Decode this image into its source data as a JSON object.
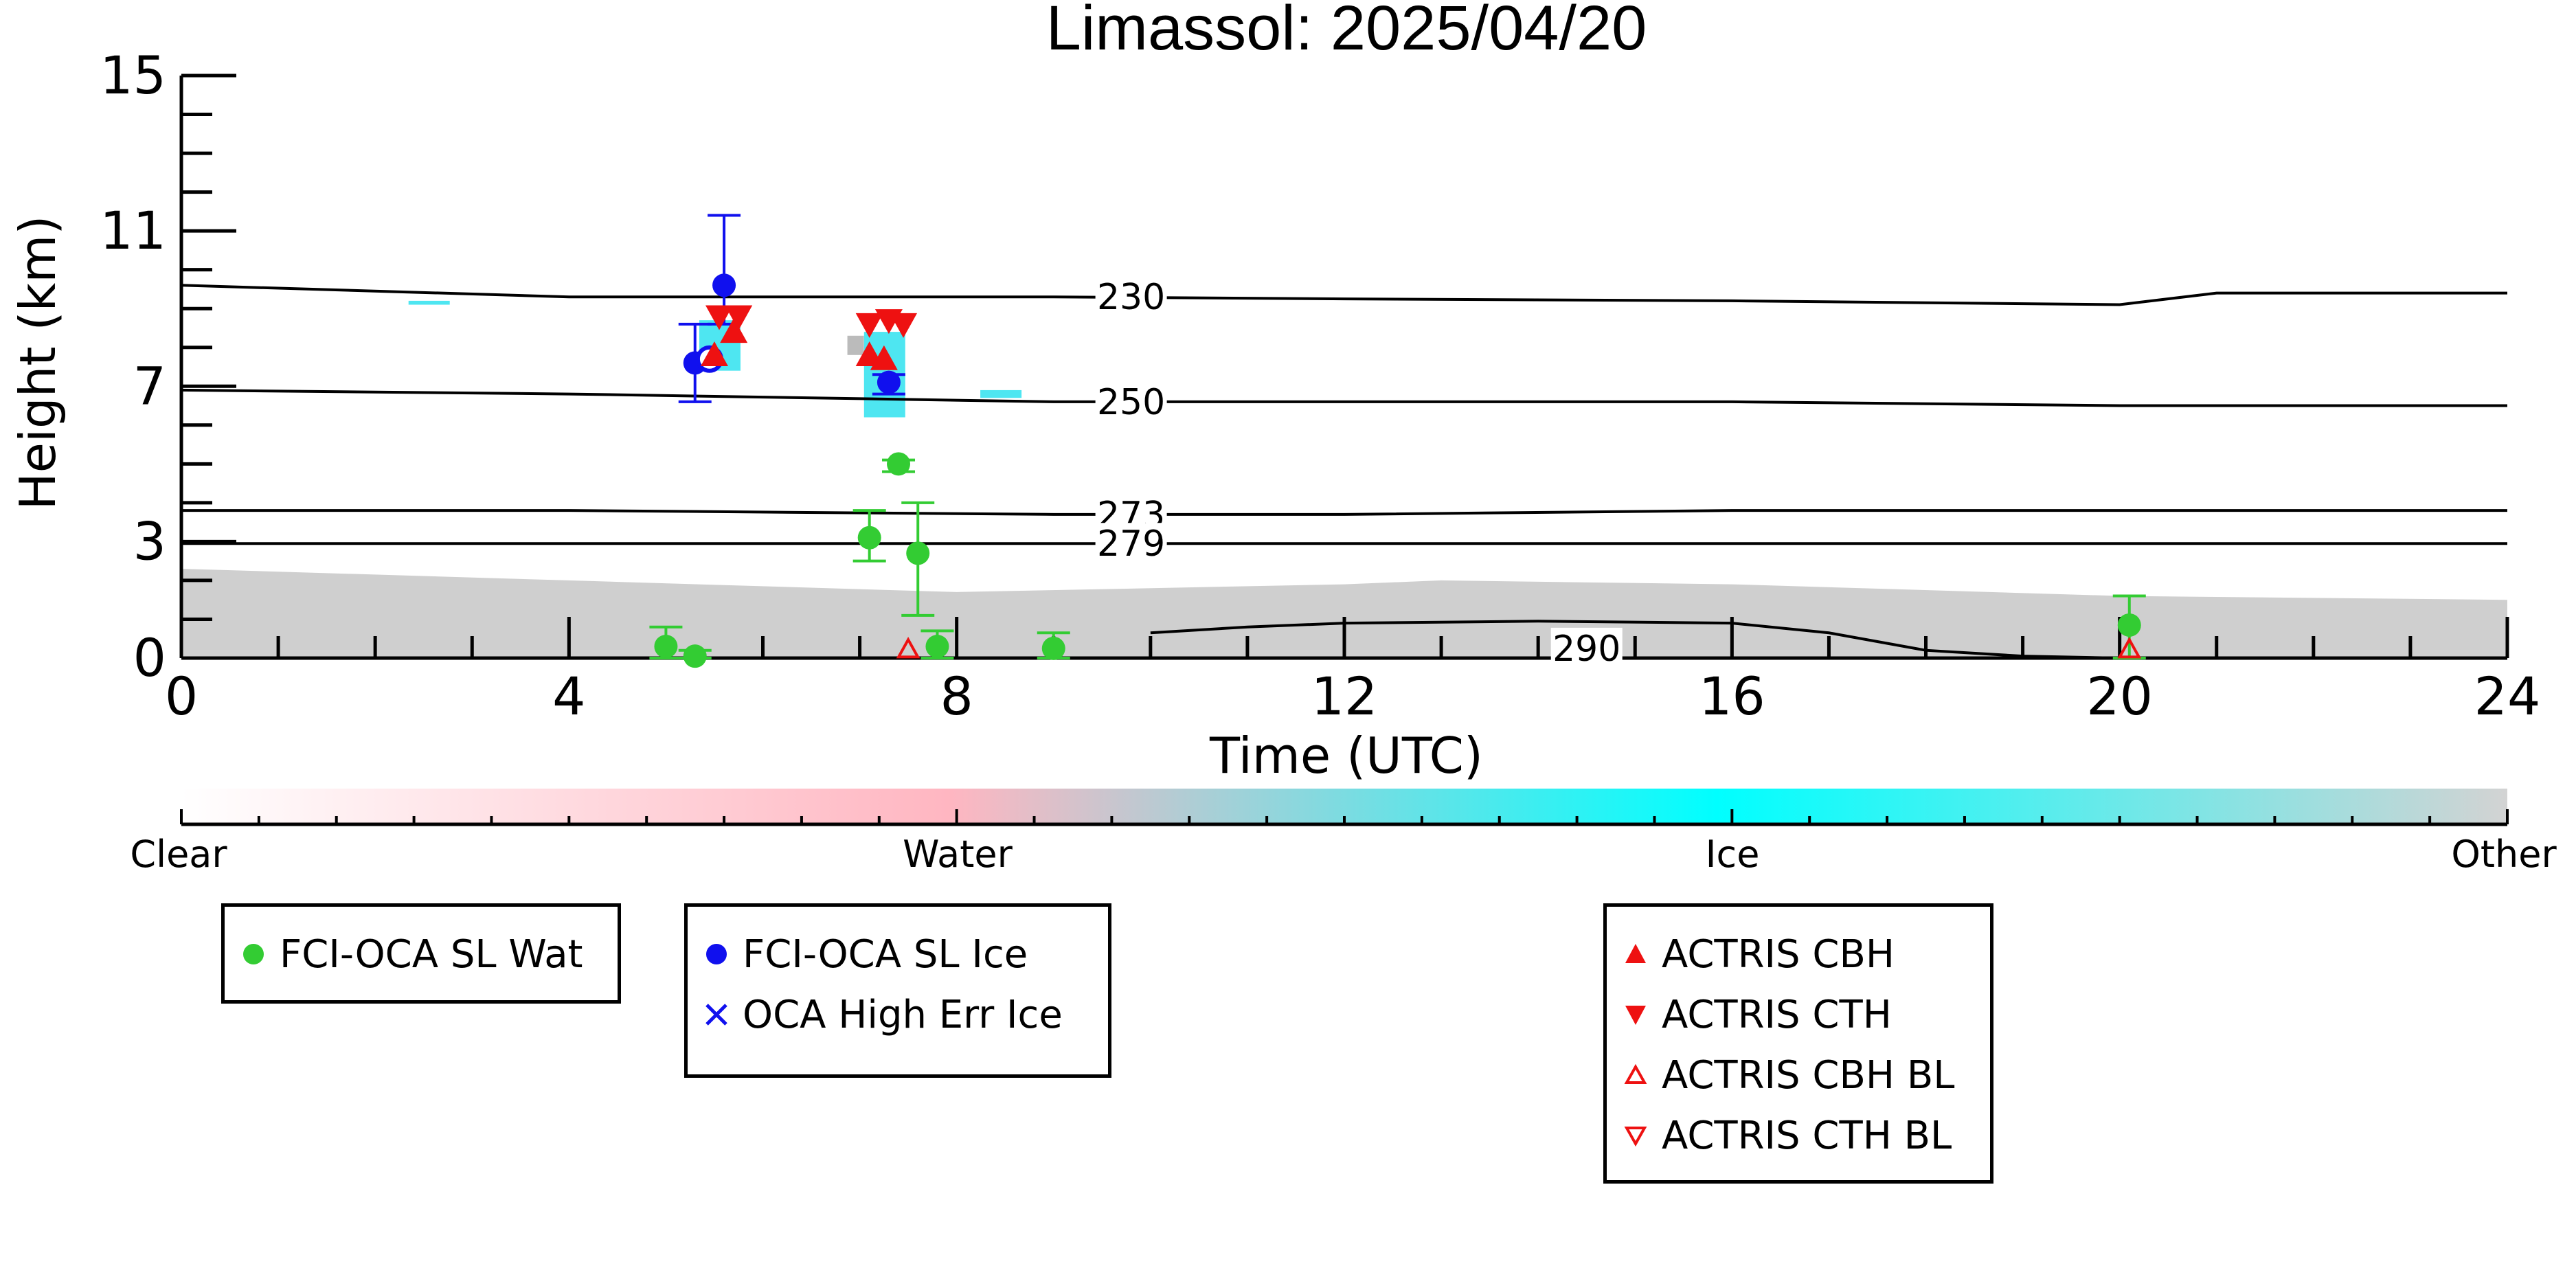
{
  "chart_data": {
    "type": "scatter",
    "title": "Limassol: 2025/04/20",
    "xlabel": "Time (UTC)",
    "ylabel": "Height (km)",
    "xlim": [
      0,
      24
    ],
    "ylim": [
      0,
      15
    ],
    "x_ticks": [
      "0",
      "4",
      "8",
      "12",
      "16",
      "20",
      "24"
    ],
    "y_ticks": [
      "0",
      "3",
      "7",
      "11",
      "15"
    ],
    "background": "cloud phase curtain (Clear / Water / Ice / Other) with temperature contours",
    "isotherms": [
      {
        "label": "230",
        "points": [
          [
            0,
            9.6
          ],
          [
            4,
            9.3
          ],
          [
            9,
            9.3
          ],
          [
            12,
            9.25
          ],
          [
            16,
            9.2
          ],
          [
            20,
            9.1
          ],
          [
            21,
            9.4
          ],
          [
            24,
            9.4
          ]
        ]
      },
      {
        "label": "250",
        "points": [
          [
            0,
            6.9
          ],
          [
            4,
            6.8
          ],
          [
            9,
            6.6
          ],
          [
            12,
            6.6
          ],
          [
            16,
            6.6
          ],
          [
            20,
            6.5
          ],
          [
            24,
            6.5
          ]
        ]
      },
      {
        "label": "273",
        "points": [
          [
            0,
            3.8
          ],
          [
            4,
            3.8
          ],
          [
            9,
            3.7
          ],
          [
            12,
            3.7
          ],
          [
            16,
            3.8
          ],
          [
            20,
            3.8
          ],
          [
            24,
            3.8
          ]
        ]
      },
      {
        "label": "279",
        "points": [
          [
            0,
            2.95
          ],
          [
            4,
            2.95
          ],
          [
            9,
            2.95
          ],
          [
            12,
            2.95
          ],
          [
            16,
            2.95
          ],
          [
            20,
            2.95
          ],
          [
            24,
            2.95
          ]
        ]
      },
      {
        "label": "290",
        "points": [
          [
            10,
            0.65
          ],
          [
            11,
            0.8
          ],
          [
            12,
            0.9
          ],
          [
            14,
            0.95
          ],
          [
            16,
            0.9
          ],
          [
            17,
            0.65
          ],
          [
            18,
            0.2
          ],
          [
            19,
            0.05
          ],
          [
            20,
            0.0
          ]
        ]
      }
    ],
    "series": [
      {
        "name": "FCI-OCA SL Wat",
        "marker": "circle",
        "color": "#33cc33",
        "points": [
          {
            "x": 5.0,
            "y": 0.3,
            "err": [
              0.0,
              0.8
            ]
          },
          {
            "x": 5.3,
            "y": 0.05,
            "err": [
              0.0,
              0.2
            ]
          },
          {
            "x": 7.1,
            "y": 3.1,
            "err": [
              2.5,
              3.8
            ]
          },
          {
            "x": 7.4,
            "y": 5.0,
            "err": [
              4.8,
              5.1
            ]
          },
          {
            "x": 7.6,
            "y": 2.7,
            "err": [
              1.1,
              4.0
            ]
          },
          {
            "x": 7.8,
            "y": 0.3,
            "err": [
              0.0,
              0.7
            ]
          },
          {
            "x": 9.0,
            "y": 0.25,
            "err": [
              0.0,
              0.65
            ]
          },
          {
            "x": 20.1,
            "y": 0.85,
            "err": [
              0.0,
              1.6
            ]
          }
        ]
      },
      {
        "name": "FCI-OCA SL Ice",
        "marker": "circle",
        "color": "#1010ee",
        "points": [
          {
            "x": 5.3,
            "y": 7.6,
            "err": [
              6.6,
              8.6
            ]
          },
          {
            "x": 5.6,
            "y": 9.6,
            "err": [
              8.6,
              11.4
            ]
          },
          {
            "x": 7.3,
            "y": 7.1,
            "err": [
              6.8,
              7.3
            ]
          },
          {
            "x": 5.45,
            "y": 7.7,
            "hollow": true
          }
        ]
      },
      {
        "name": "OCA High Err Ice",
        "marker": "x",
        "color": "#1010ee",
        "points": []
      },
      {
        "name": "ACTRIS CBH",
        "marker": "triangle-up",
        "color": "#ee1111",
        "points": [
          {
            "x": 5.5,
            "y": 7.8
          },
          {
            "x": 5.7,
            "y": 8.4
          },
          {
            "x": 7.1,
            "y": 7.8
          },
          {
            "x": 7.25,
            "y": 7.7
          }
        ]
      },
      {
        "name": "ACTRIS CTH",
        "marker": "triangle-down",
        "color": "#ee1111",
        "points": [
          {
            "x": 5.55,
            "y": 8.8
          },
          {
            "x": 5.75,
            "y": 8.8
          },
          {
            "x": 7.1,
            "y": 8.6
          },
          {
            "x": 7.3,
            "y": 8.7
          },
          {
            "x": 7.45,
            "y": 8.6
          }
        ]
      },
      {
        "name": "ACTRIS CBH BL",
        "marker": "triangle-up-open",
        "color": "#ee1111",
        "points": [
          {
            "x": 7.5,
            "y": 0.05
          },
          {
            "x": 20.1,
            "y": 0.05
          }
        ]
      },
      {
        "name": "ACTRIS CTH BL",
        "marker": "triangle-down-open",
        "color": "#ee1111",
        "points": []
      }
    ],
    "colorbar": {
      "labels": [
        "Clear",
        "Water",
        "Ice",
        "Other"
      ],
      "colors": [
        "#ffffff",
        "#ffb6c1",
        "#00ffff",
        "#d3d3d3"
      ]
    }
  },
  "legends": {
    "box1": [
      "FCI-OCA SL Wat"
    ],
    "box2": [
      "FCI-OCA SL Ice",
      "OCA High Err Ice"
    ],
    "box3": [
      "ACTRIS CBH",
      "ACTRIS CTH",
      "ACTRIS CBH BL",
      "ACTRIS CTH BL"
    ]
  }
}
